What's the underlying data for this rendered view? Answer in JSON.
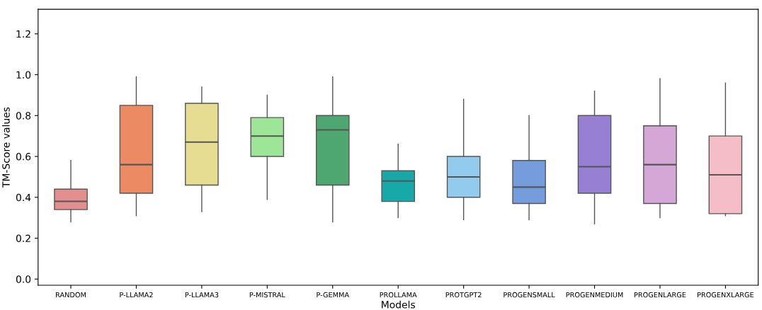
{
  "chart_data": {
    "type": "box",
    "xlabel": "Models",
    "ylabel": "TM-Score values",
    "categories": [
      "RANDOM",
      "P-LLAMA2",
      "P-LLAMA3",
      "P-MISTRAL",
      "P-GEMMA",
      "PROLLAMA",
      "PROTGPT2",
      "PROGENSMALL",
      "PROGENMEDIUM",
      "PROGENLARGE",
      "PROGENXLARGE"
    ],
    "colors": [
      "#e48f8f",
      "#ec8b63",
      "#e6dd93",
      "#9de597",
      "#4ea771",
      "#17a8a8",
      "#93cbee",
      "#759ddd",
      "#977fd3",
      "#d4a7d7",
      "#f5bdc8"
    ],
    "boxes": [
      {
        "low": 0.28,
        "q1": 0.34,
        "median": 0.38,
        "q3": 0.44,
        "high": 0.58
      },
      {
        "low": 0.31,
        "q1": 0.42,
        "median": 0.56,
        "q3": 0.85,
        "high": 0.99
      },
      {
        "low": 0.33,
        "q1": 0.46,
        "median": 0.67,
        "q3": 0.86,
        "high": 0.94
      },
      {
        "low": 0.39,
        "q1": 0.6,
        "median": 0.7,
        "q3": 0.79,
        "high": 0.9
      },
      {
        "low": 0.28,
        "q1": 0.46,
        "median": 0.73,
        "q3": 0.8,
        "high": 0.99
      },
      {
        "low": 0.3,
        "q1": 0.38,
        "median": 0.48,
        "q3": 0.53,
        "high": 0.66
      },
      {
        "low": 0.29,
        "q1": 0.4,
        "median": 0.5,
        "q3": 0.6,
        "high": 0.88
      },
      {
        "low": 0.29,
        "q1": 0.37,
        "median": 0.45,
        "q3": 0.58,
        "high": 0.8
      },
      {
        "low": 0.27,
        "q1": 0.42,
        "median": 0.55,
        "q3": 0.8,
        "high": 0.92
      },
      {
        "low": 0.3,
        "q1": 0.37,
        "median": 0.56,
        "q3": 0.75,
        "high": 0.98
      },
      {
        "low": 0.31,
        "q1": 0.32,
        "median": 0.51,
        "q3": 0.7,
        "high": 0.96
      }
    ],
    "ylim": [
      -0.03,
      1.32
    ],
    "yticks": [
      {
        "value": 0,
        "label": "0.0"
      },
      {
        "value": 0.2,
        "label": "0.2"
      },
      {
        "value": 0.4,
        "label": "0.4"
      },
      {
        "value": 0.6,
        "label": "0.6"
      },
      {
        "value": 0.8,
        "label": "0.8"
      },
      {
        "value": 1.0,
        "label": "1.0"
      },
      {
        "value": 1.2,
        "label": "1.2"
      }
    ],
    "grid": false
  }
}
